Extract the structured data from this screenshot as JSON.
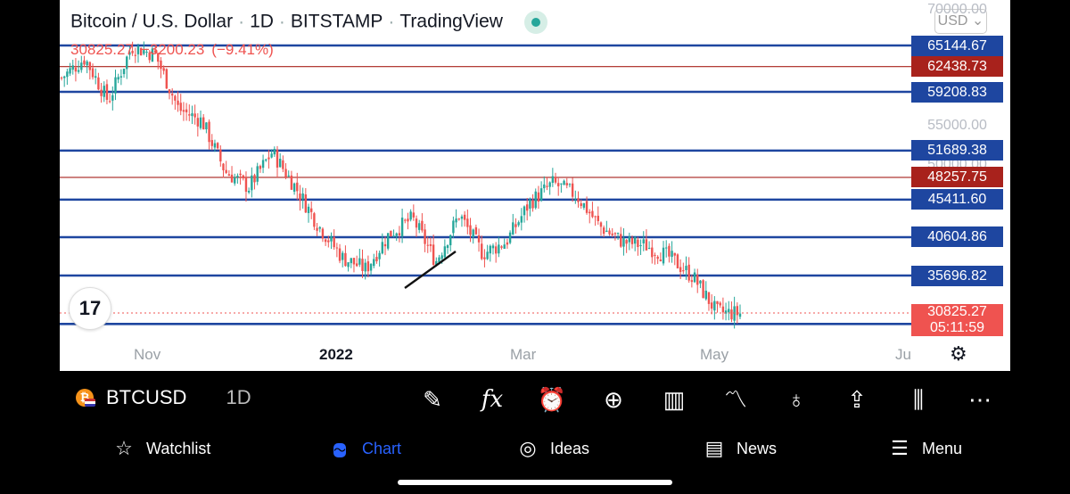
{
  "header": {
    "title_parts": [
      "Bitcoin / U.S. Dollar",
      "1D",
      "BITSTAMP",
      "TradingView"
    ],
    "separator": "·",
    "last_price": "30825.27",
    "change": "−3200.23",
    "change_pct": "(−9.41%)"
  },
  "currency_button": "USD",
  "logo_text": "17",
  "x_axis": {
    "labels": [
      "Nov",
      "2022",
      "Mar",
      "May",
      "Ju"
    ]
  },
  "price_axis": {
    "visible_ticks": [
      "70000.00",
      "55000.00",
      "50000.00"
    ],
    "level_tags": [
      {
        "value": "65144.67",
        "color": "#1e46a0"
      },
      {
        "value": "62438.73",
        "color": "#a8221c"
      },
      {
        "value": "59208.83",
        "color": "#1e46a0"
      },
      {
        "value": "51689.38",
        "color": "#1e46a0"
      },
      {
        "value": "48257.75",
        "color": "#a8221c"
      },
      {
        "value": "45411.60",
        "color": "#1e46a0"
      },
      {
        "value": "40604.86",
        "color": "#1e46a0"
      },
      {
        "value": "35696.82",
        "color": "#1e46a0"
      }
    ],
    "current_price": "30825.27",
    "countdown": "05:11:59"
  },
  "chart_data": {
    "type": "candlestick",
    "symbol": "BTCUSD",
    "interval": "1D",
    "x_labels": [
      "Nov",
      "2022",
      "Mar",
      "May",
      "Ju"
    ],
    "horizontal_levels": [
      65144.67,
      62438.73,
      59208.83,
      51689.38,
      48257.75,
      45411.6,
      40604.86,
      35696.82,
      29500
    ],
    "close_path": [
      61000,
      63500,
      58000,
      65000,
      64000,
      57000,
      55500,
      49000,
      47000,
      51500,
      47000,
      42000,
      38000,
      36500,
      41000,
      43000,
      37500,
      43500,
      38500,
      40000,
      45000,
      47500,
      46000,
      42000,
      40000,
      39500,
      38000,
      35500,
      31000,
      30825.27
    ],
    "colors": {
      "up": "#26a69a",
      "down": "#ef5350"
    }
  },
  "toolbar": {
    "symbol": "BTCUSD",
    "interval": "1D",
    "tools": [
      "brush-icon",
      "fx-icon",
      "alarm-icon",
      "plus-icon",
      "bar-chart-icon",
      "indicator-icon",
      "lightbulb-icon",
      "share-icon",
      "candles-icon",
      "more-icon"
    ]
  },
  "nav": [
    {
      "label": "Watchlist",
      "icon": "star-icon"
    },
    {
      "label": "Chart",
      "icon": "chart-icon",
      "active": true
    },
    {
      "label": "Ideas",
      "icon": "bulb-icon"
    },
    {
      "label": "News",
      "icon": "news-icon"
    },
    {
      "label": "Menu",
      "icon": "menu-icon"
    }
  ]
}
